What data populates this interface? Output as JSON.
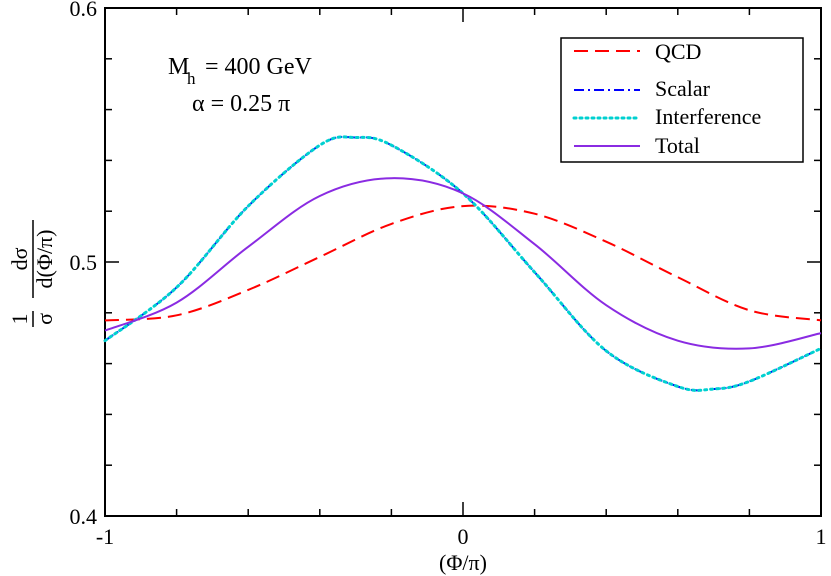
{
  "chart_data": {
    "type": "line",
    "xlabel": "(Φ/π)",
    "ylabel_parts": {
      "prefix": "1",
      "sigma": "σ",
      "numerator": "dσ",
      "denominator": "d(Φ/π)"
    },
    "xlim": [
      -1,
      1
    ],
    "ylim": [
      0.4,
      0.6
    ],
    "xticks": [
      -1,
      0,
      1
    ],
    "xtick_labels": [
      "-1",
      "0",
      "1"
    ],
    "yticks": [
      0.4,
      0.5,
      0.6
    ],
    "ytick_labels": [
      "0.4",
      "0.5",
      "0.6"
    ],
    "annotations": {
      "mass_symbol": "M",
      "mass_subscript": "h",
      "mass_value": "= 400 GeV",
      "alpha": "α = 0.25 π"
    },
    "legend_position": "top-right",
    "series": [
      {
        "name": "QCD",
        "color": "#ff0000",
        "dash": "long-dash",
        "x": [
          -1,
          -0.8,
          -0.6,
          -0.4,
          -0.2,
          0,
          0.2,
          0.4,
          0.6,
          0.8,
          1
        ],
        "y": [
          0.477,
          0.479,
          0.489,
          0.502,
          0.515,
          0.522,
          0.519,
          0.508,
          0.494,
          0.481,
          0.477
        ]
      },
      {
        "name": "Scalar",
        "color": "#0000ff",
        "dash": "dash-dot",
        "x": [
          -1,
          -0.8,
          -0.6,
          -0.4,
          -0.3,
          -0.2,
          0,
          0.2,
          0.4,
          0.6,
          0.7,
          0.8,
          1
        ],
        "y": [
          0.469,
          0.49,
          0.522,
          0.546,
          0.549,
          0.546,
          0.527,
          0.496,
          0.465,
          0.451,
          0.45,
          0.453,
          0.466
        ]
      },
      {
        "name": "Interference",
        "color": "#00d0d0",
        "dash": "dotted",
        "x": [
          -1,
          -0.8,
          -0.6,
          -0.4,
          -0.3,
          -0.2,
          0,
          0.2,
          0.4,
          0.6,
          0.7,
          0.8,
          1
        ],
        "y": [
          0.469,
          0.49,
          0.522,
          0.546,
          0.549,
          0.546,
          0.527,
          0.496,
          0.465,
          0.451,
          0.45,
          0.453,
          0.466
        ]
      },
      {
        "name": "Total",
        "color": "#8a2be2",
        "dash": "solid",
        "x": [
          -1,
          -0.8,
          -0.6,
          -0.4,
          -0.2,
          0,
          0.2,
          0.4,
          0.6,
          0.8,
          1
        ],
        "y": [
          0.473,
          0.484,
          0.506,
          0.526,
          0.533,
          0.527,
          0.507,
          0.483,
          0.469,
          0.466,
          0.472
        ]
      }
    ]
  }
}
